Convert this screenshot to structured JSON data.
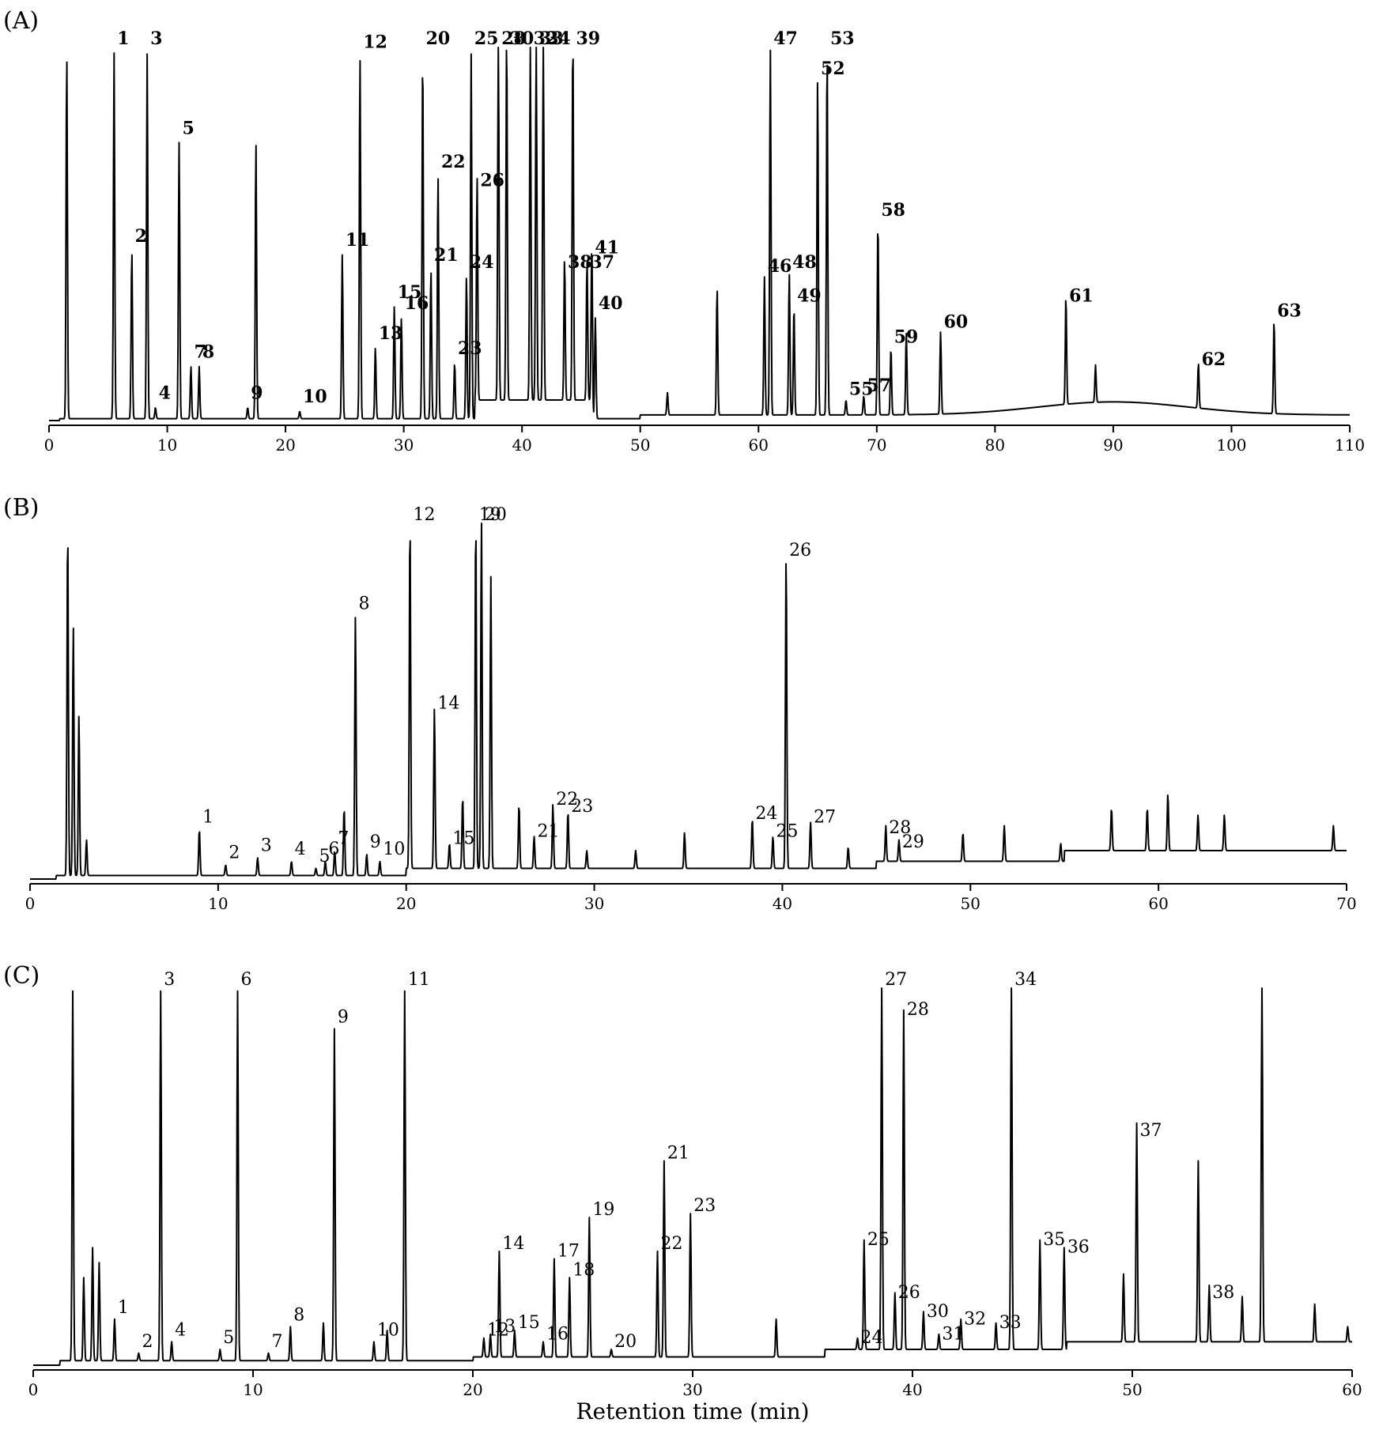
{
  "chart_data": [
    {
      "type": "line",
      "panel_label": "(A)",
      "xlim": [
        0,
        110
      ],
      "xticks": [
        0,
        10,
        20,
        30,
        40,
        50,
        60,
        70,
        80,
        90,
        100,
        110
      ],
      "xlabel": "",
      "ylabel": "",
      "peaks": [
        {
          "label": "",
          "rt": 1.5,
          "h": 0.98
        },
        {
          "label": "1",
          "rt": 5.5,
          "h": 0.98
        },
        {
          "label": "2",
          "rt": 7.0,
          "h": 0.45
        },
        {
          "label": "3",
          "rt": 8.3,
          "h": 0.98
        },
        {
          "label": "4",
          "rt": 9.0,
          "h": 0.03
        },
        {
          "label": "5",
          "rt": 11.0,
          "h": 0.74
        },
        {
          "label": "7",
          "rt": 12.0,
          "h": 0.14
        },
        {
          "label": "8",
          "rt": 12.7,
          "h": 0.14
        },
        {
          "label": "9",
          "rt": 16.8,
          "h": 0.03
        },
        {
          "label": "",
          "rt": 17.5,
          "h": 0.74
        },
        {
          "label": "10",
          "rt": 21.2,
          "h": 0.02
        },
        {
          "label": "11",
          "rt": 24.8,
          "h": 0.44
        },
        {
          "label": "12",
          "rt": 26.3,
          "h": 0.97
        },
        {
          "label": "13",
          "rt": 27.6,
          "h": 0.19
        },
        {
          "label": "15",
          "rt": 29.2,
          "h": 0.3
        },
        {
          "label": "16",
          "rt": 29.8,
          "h": 0.27
        },
        {
          "label": "20",
          "rt": 31.6,
          "h": 0.98
        },
        {
          "label": "21",
          "rt": 32.3,
          "h": 0.4
        },
        {
          "label": "22",
          "rt": 32.9,
          "h": 0.65
        },
        {
          "label": "23",
          "rt": 34.3,
          "h": 0.15
        },
        {
          "label": "24",
          "rt": 35.3,
          "h": 0.38
        },
        {
          "label": "25",
          "rt": 35.7,
          "h": 0.98
        },
        {
          "label": "26",
          "rt": 36.2,
          "h": 0.6
        },
        {
          "label": "28",
          "rt": 38.0,
          "h": 0.98
        },
        {
          "label": "30",
          "rt": 38.7,
          "h": 0.98
        },
        {
          "label": "32",
          "rt": 40.7,
          "h": 0.98
        },
        {
          "label": "33",
          "rt": 41.2,
          "h": 0.98
        },
        {
          "label": "34",
          "rt": 41.8,
          "h": 0.98
        },
        {
          "label": "38",
          "rt": 43.6,
          "h": 0.38
        },
        {
          "label": "39",
          "rt": 44.3,
          "h": 0.98
        },
        {
          "label": "37",
          "rt": 45.5,
          "h": 0.38
        },
        {
          "label": "41",
          "rt": 45.9,
          "h": 0.42
        },
        {
          "label": "40",
          "rt": 46.2,
          "h": 0.27
        },
        {
          "label": "",
          "rt": 52.3,
          "h": 0.06
        },
        {
          "label": "",
          "rt": 56.5,
          "h": 0.34
        },
        {
          "label": "46",
          "rt": 60.5,
          "h": 0.37
        },
        {
          "label": "47",
          "rt": 61.0,
          "h": 0.98
        },
        {
          "label": "48",
          "rt": 62.6,
          "h": 0.38
        },
        {
          "label": "49",
          "rt": 63.0,
          "h": 0.29
        },
        {
          "label": "52",
          "rt": 65.0,
          "h": 0.9
        },
        {
          "label": "53",
          "rt": 65.8,
          "h": 0.98
        },
        {
          "label": "55",
          "rt": 67.4,
          "h": 0.04
        },
        {
          "label": "57",
          "rt": 68.9,
          "h": 0.05
        },
        {
          "label": "58",
          "rt": 70.1,
          "h": 0.52
        },
        {
          "label": "59",
          "rt": 71.2,
          "h": 0.18
        },
        {
          "label": "",
          "rt": 72.5,
          "h": 0.22
        },
        {
          "label": "60",
          "rt": 75.4,
          "h": 0.22
        },
        {
          "label": "61",
          "rt": 86.0,
          "h": 0.29
        },
        {
          "label": "",
          "rt": 88.5,
          "h": 0.1
        },
        {
          "label": "62",
          "rt": 97.2,
          "h": 0.12
        },
        {
          "label": "63",
          "rt": 103.6,
          "h": 0.25
        }
      ]
    },
    {
      "type": "line",
      "panel_label": "(B)",
      "xlim": [
        0,
        70
      ],
      "xticks": [
        0,
        10,
        20,
        30,
        40,
        50,
        60,
        70
      ],
      "xlabel": "",
      "ylabel": "",
      "peaks": [
        {
          "label": "",
          "rt": 2.0,
          "h": 0.98
        },
        {
          "label": "",
          "rt": 2.3,
          "h": 0.7
        },
        {
          "label": "",
          "rt": 2.6,
          "h": 0.45
        },
        {
          "label": "",
          "rt": 3.0,
          "h": 0.1
        },
        {
          "label": "1",
          "rt": 9.0,
          "h": 0.13
        },
        {
          "label": "2",
          "rt": 10.4,
          "h": 0.03
        },
        {
          "label": "3",
          "rt": 12.1,
          "h": 0.05
        },
        {
          "label": "4",
          "rt": 13.9,
          "h": 0.04
        },
        {
          "label": "5",
          "rt": 15.2,
          "h": 0.02
        },
        {
          "label": "6",
          "rt": 15.7,
          "h": 0.04
        },
        {
          "label": "7",
          "rt": 16.2,
          "h": 0.07
        },
        {
          "label": "",
          "rt": 16.7,
          "h": 0.19
        },
        {
          "label": "8",
          "rt": 17.3,
          "h": 0.73
        },
        {
          "label": "9",
          "rt": 17.9,
          "h": 0.06
        },
        {
          "label": "10",
          "rt": 18.6,
          "h": 0.04
        },
        {
          "label": "12",
          "rt": 20.2,
          "h": 0.98
        },
        {
          "label": "14",
          "rt": 21.5,
          "h": 0.45
        },
        {
          "label": "15",
          "rt": 22.3,
          "h": 0.07
        },
        {
          "label": "",
          "rt": 23.0,
          "h": 0.2
        },
        {
          "label": "19",
          "rt": 23.7,
          "h": 0.98
        },
        {
          "label": "20",
          "rt": 24.0,
          "h": 0.98
        },
        {
          "label": "",
          "rt": 24.5,
          "h": 0.82
        },
        {
          "label": "",
          "rt": 26.0,
          "h": 0.18
        },
        {
          "label": "21",
          "rt": 26.8,
          "h": 0.09
        },
        {
          "label": "22",
          "rt": 27.8,
          "h": 0.18
        },
        {
          "label": "23",
          "rt": 28.6,
          "h": 0.16
        },
        {
          "label": "",
          "rt": 29.6,
          "h": 0.05
        },
        {
          "label": "",
          "rt": 32.2,
          "h": 0.05
        },
        {
          "label": "",
          "rt": 34.8,
          "h": 0.1
        },
        {
          "label": "24",
          "rt": 38.4,
          "h": 0.14
        },
        {
          "label": "25",
          "rt": 39.5,
          "h": 0.09
        },
        {
          "label": "26",
          "rt": 40.2,
          "h": 0.88
        },
        {
          "label": "27",
          "rt": 41.5,
          "h": 0.13
        },
        {
          "label": "",
          "rt": 43.5,
          "h": 0.06
        },
        {
          "label": "28",
          "rt": 45.5,
          "h": 0.1
        },
        {
          "label": "29",
          "rt": 46.2,
          "h": 0.06
        },
        {
          "label": "",
          "rt": 49.6,
          "h": 0.08
        },
        {
          "label": "",
          "rt": 51.8,
          "h": 0.1
        },
        {
          "label": "",
          "rt": 54.8,
          "h": 0.05
        },
        {
          "label": "",
          "rt": 57.5,
          "h": 0.12
        },
        {
          "label": "",
          "rt": 59.4,
          "h": 0.12
        },
        {
          "label": "",
          "rt": 60.5,
          "h": 0.16
        },
        {
          "label": "",
          "rt": 62.1,
          "h": 0.1
        },
        {
          "label": "",
          "rt": 63.5,
          "h": 0.1
        },
        {
          "label": "",
          "rt": 69.3,
          "h": 0.07
        }
      ]
    },
    {
      "type": "line",
      "panel_label": "(C)",
      "xlim": [
        0,
        60
      ],
      "xticks": [
        0,
        10,
        20,
        30,
        40,
        50,
        60
      ],
      "xlabel": "Retention time (min)",
      "ylabel": "",
      "peaks": [
        {
          "label": "",
          "rt": 1.8,
          "h": 0.98
        },
        {
          "label": "",
          "rt": 2.3,
          "h": 0.22
        },
        {
          "label": "",
          "rt": 2.7,
          "h": 0.3
        },
        {
          "label": "",
          "rt": 3.0,
          "h": 0.26
        },
        {
          "label": "1",
          "rt": 3.7,
          "h": 0.11
        },
        {
          "label": "2",
          "rt": 4.8,
          "h": 0.02
        },
        {
          "label": "3",
          "rt": 5.8,
          "h": 0.98
        },
        {
          "label": "4",
          "rt": 6.3,
          "h": 0.05
        },
        {
          "label": "5",
          "rt": 8.5,
          "h": 0.03
        },
        {
          "label": "6",
          "rt": 9.3,
          "h": 0.98
        },
        {
          "label": "7",
          "rt": 10.7,
          "h": 0.02
        },
        {
          "label": "8",
          "rt": 11.7,
          "h": 0.09
        },
        {
          "label": "",
          "rt": 13.2,
          "h": 0.1
        },
        {
          "label": "9",
          "rt": 13.7,
          "h": 0.88
        },
        {
          "label": "10",
          "rt": 15.5,
          "h": 0.05
        },
        {
          "label": "",
          "rt": 16.1,
          "h": 0.08
        },
        {
          "label": "11",
          "rt": 16.9,
          "h": 0.98
        },
        {
          "label": "12",
          "rt": 20.5,
          "h": 0.05
        },
        {
          "label": "13",
          "rt": 20.8,
          "h": 0.06
        },
        {
          "label": "14",
          "rt": 21.2,
          "h": 0.28
        },
        {
          "label": "15",
          "rt": 21.9,
          "h": 0.07
        },
        {
          "label": "16",
          "rt": 23.2,
          "h": 0.04
        },
        {
          "label": "17",
          "rt": 23.7,
          "h": 0.26
        },
        {
          "label": "18",
          "rt": 24.4,
          "h": 0.21
        },
        {
          "label": "19",
          "rt": 25.3,
          "h": 0.37
        },
        {
          "label": "20",
          "rt": 26.3,
          "h": 0.02
        },
        {
          "label": "22",
          "rt": 28.4,
          "h": 0.28
        },
        {
          "label": "21",
          "rt": 28.7,
          "h": 0.52
        },
        {
          "label": "23",
          "rt": 29.9,
          "h": 0.38
        },
        {
          "label": "",
          "rt": 33.8,
          "h": 0.1
        },
        {
          "label": "24",
          "rt": 37.5,
          "h": 0.03
        },
        {
          "label": "25",
          "rt": 37.8,
          "h": 0.29
        },
        {
          "label": "27",
          "rt": 38.6,
          "h": 0.98
        },
        {
          "label": "26",
          "rt": 39.2,
          "h": 0.15
        },
        {
          "label": "28",
          "rt": 39.6,
          "h": 0.9
        },
        {
          "label": "30",
          "rt": 40.5,
          "h": 0.1
        },
        {
          "label": "31",
          "rt": 41.2,
          "h": 0.04
        },
        {
          "label": "32",
          "rt": 42.2,
          "h": 0.08
        },
        {
          "label": "33",
          "rt": 43.8,
          "h": 0.07
        },
        {
          "label": "34",
          "rt": 44.5,
          "h": 0.98
        },
        {
          "label": "35",
          "rt": 45.8,
          "h": 0.29
        },
        {
          "label": "36",
          "rt": 46.9,
          "h": 0.27
        },
        {
          "label": "",
          "rt": 49.6,
          "h": 0.18
        },
        {
          "label": "37",
          "rt": 50.2,
          "h": 0.58
        },
        {
          "label": "",
          "rt": 53.0,
          "h": 0.48
        },
        {
          "label": "38",
          "rt": 53.5,
          "h": 0.15
        },
        {
          "label": "",
          "rt": 55.0,
          "h": 0.12
        },
        {
          "label": "",
          "rt": 55.9,
          "h": 0.98
        },
        {
          "label": "",
          "rt": 58.3,
          "h": 0.1
        },
        {
          "label": "",
          "rt": 59.8,
          "h": 0.04
        }
      ]
    }
  ]
}
